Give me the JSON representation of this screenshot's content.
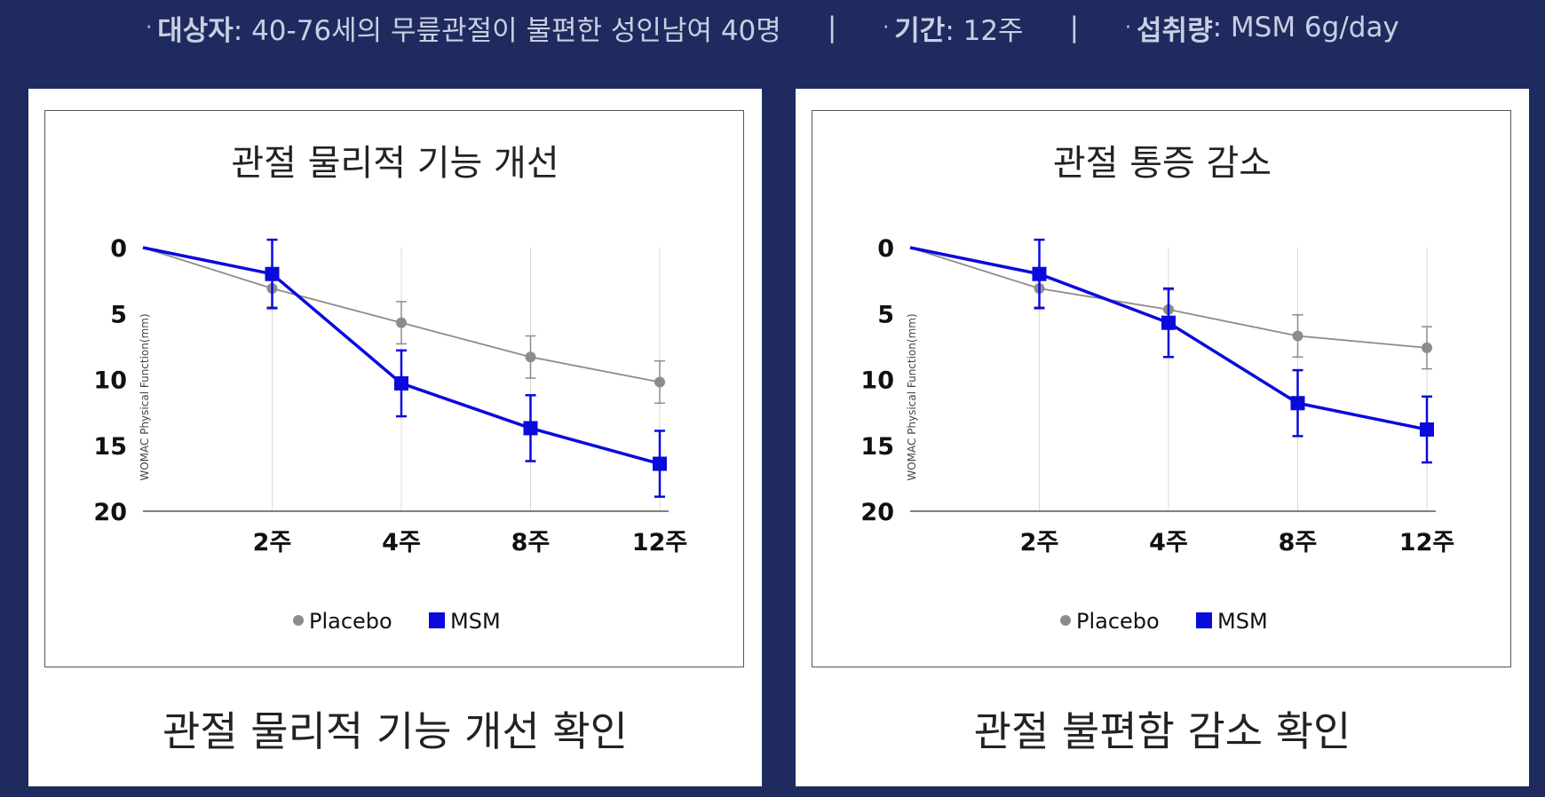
{
  "header": {
    "subjects_label": "대상자",
    "subjects_value": ": 40-76세의 무릎관절이 불편한 성인남여 40명",
    "period_label": "기간",
    "period_value": ": 12주",
    "intake_label": "섭취량",
    "intake_value": ": MSM 6g/day",
    "separator": "|",
    "bullet": "·"
  },
  "panels": [
    {
      "caption": "관절 물리적 기능 개선 확인"
    },
    {
      "caption": "관절 불편함 감소 확인"
    }
  ],
  "colors": {
    "placebo": "#8c8c8c",
    "msm": "#0a0adc",
    "grid": "#d9d9d9",
    "axis": "#555555"
  },
  "chart_data": [
    {
      "type": "line",
      "title": "관절 물리적 기능 개선",
      "ylabel": "WOMAC Physical Function(mm)",
      "xlabel": "",
      "y_reversed": true,
      "ylim": [
        0,
        20
      ],
      "yticks": [
        "0",
        "5",
        "10",
        "15",
        "20"
      ],
      "categories": [
        "",
        "2주",
        "4주",
        "8주",
        "12주"
      ],
      "grid": "vertical",
      "legend": "bottom",
      "series": [
        {
          "name": "Placebo",
          "marker": "circle",
          "values": [
            0,
            3.1,
            5.7,
            8.3,
            10.2
          ],
          "errors": [
            0,
            1.4,
            1.6,
            1.6,
            1.6
          ]
        },
        {
          "name": "MSM",
          "marker": "square",
          "values": [
            0,
            2.0,
            10.3,
            13.7,
            16.4
          ],
          "errors": [
            0,
            2.6,
            2.5,
            2.5,
            2.5
          ]
        }
      ]
    },
    {
      "type": "line",
      "title": "관절 통증 감소",
      "ylabel": "WOMAC Physical Function(mm)",
      "xlabel": "",
      "y_reversed": true,
      "ylim": [
        0,
        20
      ],
      "yticks": [
        "0",
        "5",
        "10",
        "15",
        "20"
      ],
      "categories": [
        "",
        "2주",
        "4주",
        "8주",
        "12주"
      ],
      "grid": "vertical",
      "legend": "bottom",
      "series": [
        {
          "name": "Placebo",
          "marker": "circle",
          "values": [
            0,
            3.1,
            4.7,
            6.7,
            7.6
          ],
          "errors": [
            0,
            1.4,
            1.5,
            1.6,
            1.6
          ]
        },
        {
          "name": "MSM",
          "marker": "square",
          "values": [
            0,
            2.0,
            5.7,
            11.8,
            13.8
          ],
          "errors": [
            0,
            2.6,
            2.6,
            2.5,
            2.5
          ]
        }
      ]
    }
  ]
}
